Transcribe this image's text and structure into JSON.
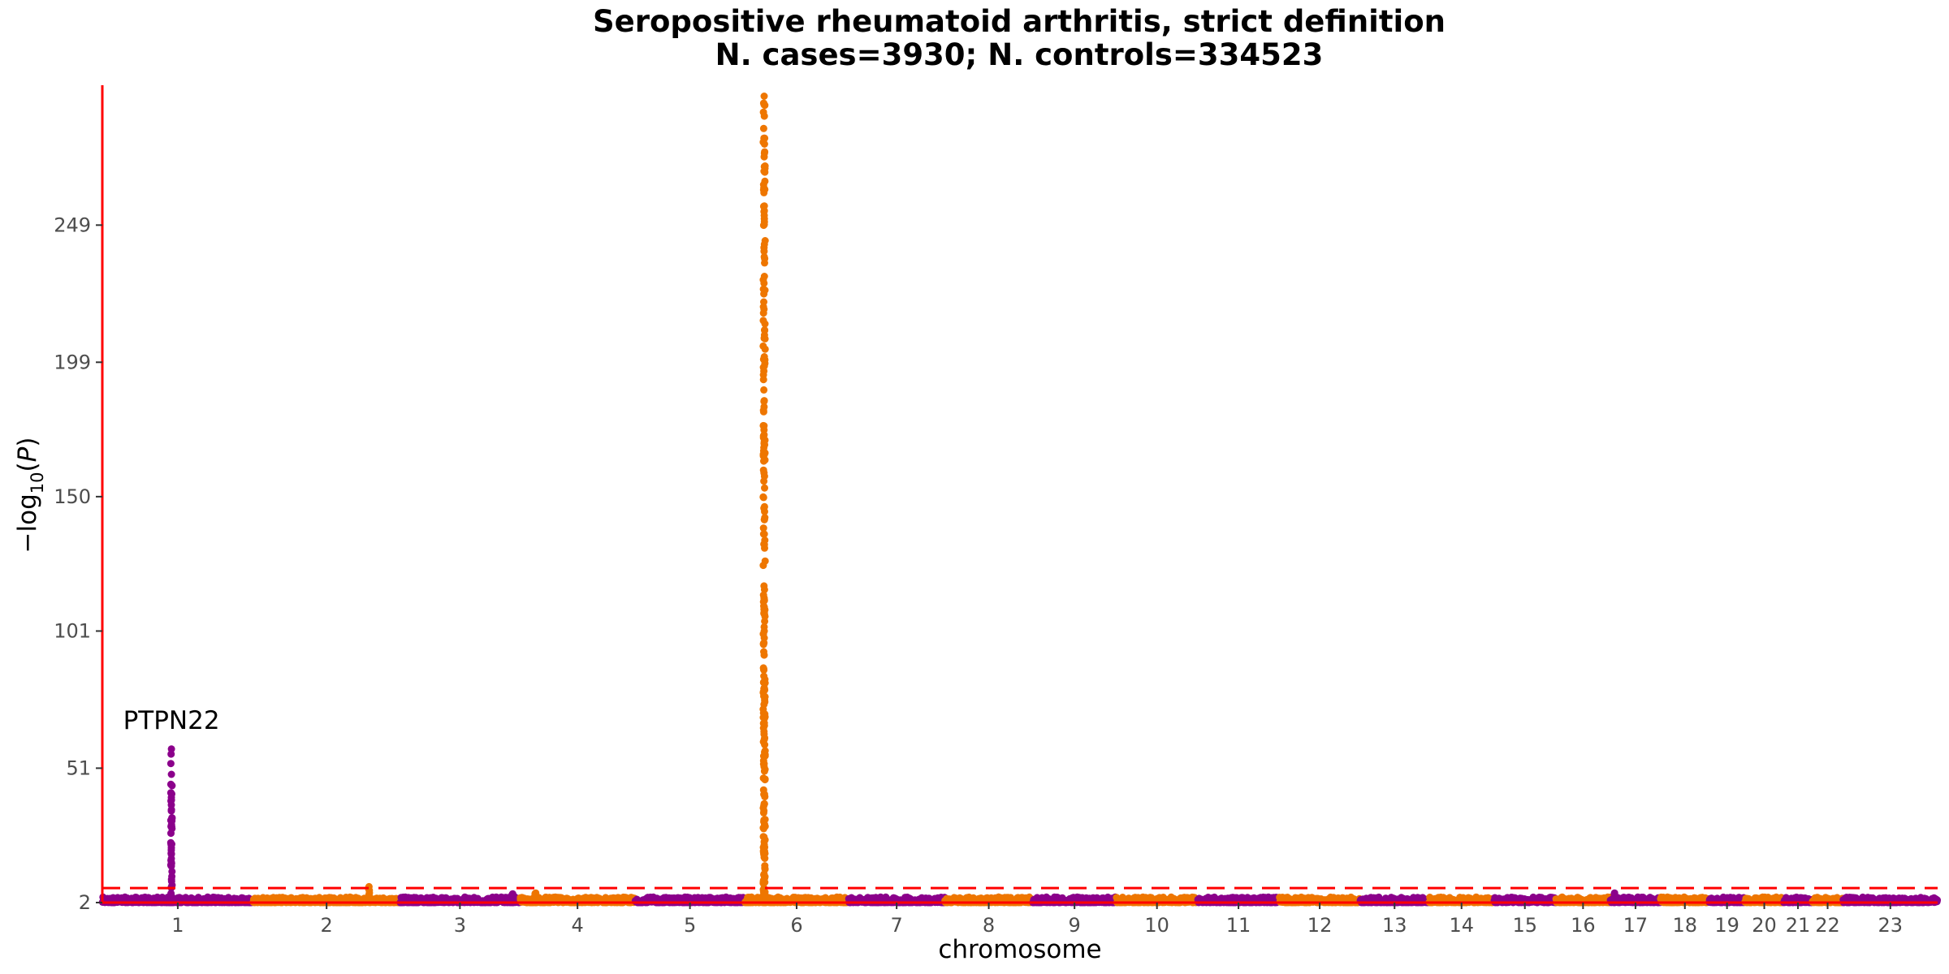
{
  "title_line1": "Seropositive rheumatoid arthritis, strict definition",
  "title_line2": "N. cases=3930; N. controls=334523",
  "colors": {
    "odd": "#8B008B",
    "even": "#EE7600",
    "axis": "#FF0000",
    "threshold": "#FF0000"
  },
  "chart_data": {
    "type": "scatter",
    "xlabel": "chromosome",
    "ylabel": "−log10(P)",
    "ylim": [
      2,
      300
    ],
    "y_ticks": [
      2,
      51,
      101,
      150,
      199,
      249
    ],
    "significance_threshold": 7.3,
    "chromosomes": [
      "1",
      "2",
      "3",
      "4",
      "5",
      "6",
      "7",
      "8",
      "9",
      "10",
      "11",
      "12",
      "13",
      "14",
      "15",
      "16",
      "17",
      "18",
      "19",
      "20",
      "21",
      "22",
      "23"
    ],
    "chromosome_lengths_mb": [
      249,
      242,
      198,
      190,
      181,
      171,
      159,
      145,
      138,
      134,
      135,
      133,
      114,
      107,
      102,
      90,
      83,
      80,
      59,
      64,
      47,
      51,
      156
    ],
    "background_max": 4,
    "peaks": [
      {
        "chr": "1",
        "pos_mb": 114,
        "max": 58,
        "label": "PTPN22"
      },
      {
        "chr": "2",
        "pos_mb": 191,
        "max": 7.8,
        "label": ""
      },
      {
        "chr": "3",
        "pos_mb": 186,
        "max": 5.2,
        "label": ""
      },
      {
        "chr": "4",
        "pos_mb": 26,
        "max": 5.5,
        "label": ""
      },
      {
        "chr": "6",
        "pos_mb": 32,
        "max": 296,
        "label": ""
      },
      {
        "chr": "17",
        "pos_mb": 7,
        "max": 5.5,
        "label": ""
      }
    ]
  }
}
